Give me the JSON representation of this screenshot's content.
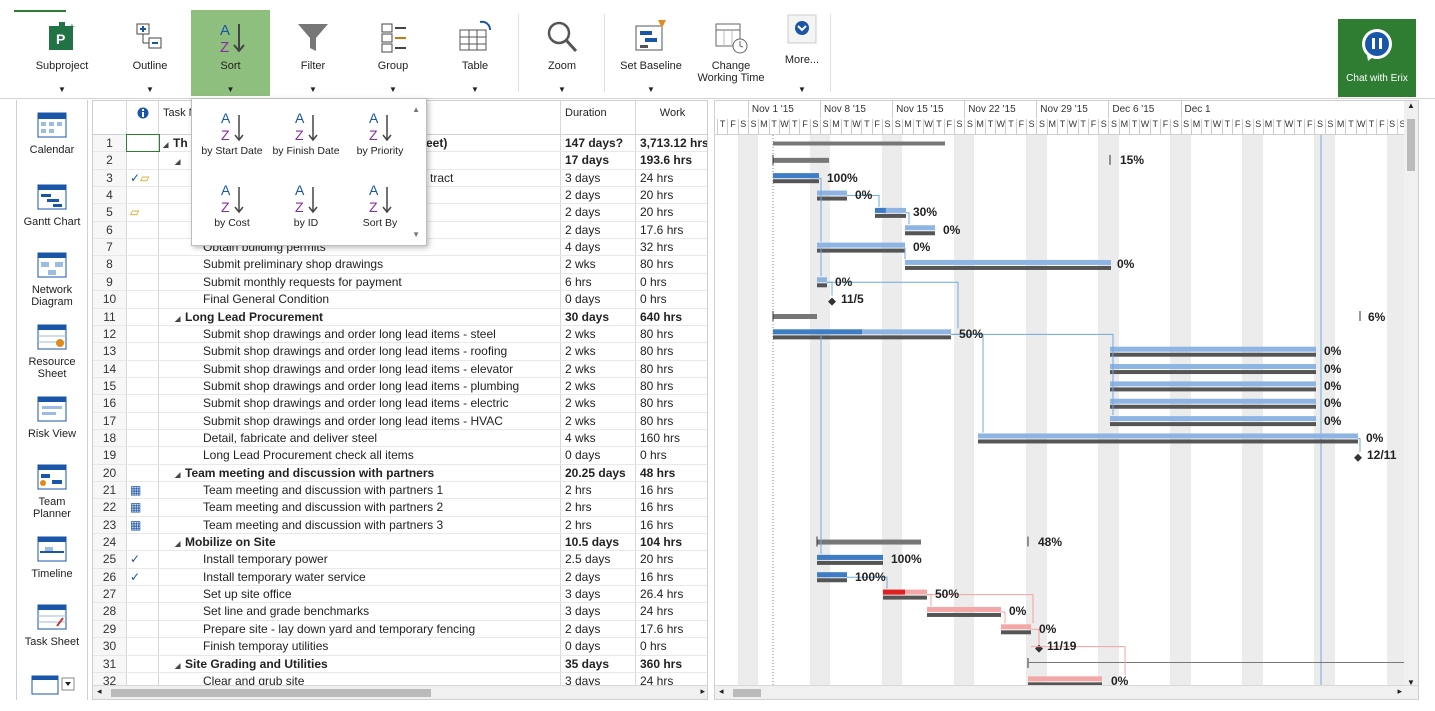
{
  "ribbon": {
    "subproject": "Subproject",
    "outline": "Outline",
    "sort": "Sort",
    "filter": "Filter",
    "group": "Group",
    "table": "Table",
    "zoom": "Zoom",
    "set_baseline": "Set Baseline",
    "change_working_time_1": "Change",
    "change_working_time_2": "Working Time",
    "more": "More...",
    "chat": "Chat with Erix"
  },
  "views": {
    "calendar": "Calendar",
    "gantt_chart": "Gantt Chart",
    "network_1": "Network",
    "network_2": "Diagram",
    "resource_1": "Resource",
    "resource_2": "Sheet",
    "risk_view": "Risk View",
    "team_1": "Team",
    "team_2": "Planner",
    "timeline": "Timeline",
    "task_sheet": "Task Sheet"
  },
  "sort_menu": {
    "by_start": "by Start Date",
    "by_finish": "by Finish Date",
    "by_priority": "by Priority",
    "by_cost": "by Cost",
    "by_id": "by ID",
    "sort_by": "Sort By"
  },
  "columns": {
    "task_name": "Task N",
    "duration": "Duration",
    "work": "Work"
  },
  "rows": [
    {
      "id": "1",
      "name": "Th",
      "name_tail": "eet)",
      "duration": "147 days?",
      "work": "3,713.12 hrs",
      "summary": true,
      "indent": 0
    },
    {
      "id": "2",
      "name": "",
      "duration": "17 days",
      "work": "193.6 hrs",
      "summary": true,
      "indent": 1
    },
    {
      "id": "3",
      "name": "",
      "name_tail": "tract",
      "duration": "3 days",
      "work": "24 hrs",
      "indent": 2
    },
    {
      "id": "4",
      "name": "",
      "duration": "2 days",
      "work": "20 hrs",
      "indent": 2
    },
    {
      "id": "5",
      "name": "",
      "duration": "2 days",
      "work": "20 hrs",
      "indent": 2
    },
    {
      "id": "6",
      "name": "",
      "duration": "2 days",
      "work": "17.6 hrs",
      "indent": 2
    },
    {
      "id": "7",
      "name": "Obtain building permits",
      "duration": "4 days",
      "work": "32 hrs",
      "indent": 2
    },
    {
      "id": "8",
      "name": "Submit preliminary shop drawings",
      "duration": "2 wks",
      "work": "80 hrs",
      "indent": 2
    },
    {
      "id": "9",
      "name": "Submit monthly requests for payment",
      "duration": "6 hrs",
      "work": "0 hrs",
      "indent": 2
    },
    {
      "id": "10",
      "name": "Final General Condition",
      "duration": "0 days",
      "work": "0 hrs",
      "indent": 2
    },
    {
      "id": "11",
      "name": "Long Lead Procurement",
      "duration": "30 days",
      "work": "640 hrs",
      "summary": true,
      "indent": 1
    },
    {
      "id": "12",
      "name": "Submit shop drawings and order long lead items - steel",
      "duration": "2 wks",
      "work": "80 hrs",
      "indent": 2
    },
    {
      "id": "13",
      "name": "Submit shop drawings and order long lead items - roofing",
      "duration": "2 wks",
      "work": "80 hrs",
      "indent": 2
    },
    {
      "id": "14",
      "name": "Submit shop drawings and order long lead items - elevator",
      "duration": "2 wks",
      "work": "80 hrs",
      "indent": 2
    },
    {
      "id": "15",
      "name": "Submit shop drawings and order long lead items - plumbing",
      "duration": "2 wks",
      "work": "80 hrs",
      "indent": 2
    },
    {
      "id": "16",
      "name": "Submit shop drawings and order long lead items - electric",
      "duration": "2 wks",
      "work": "80 hrs",
      "indent": 2
    },
    {
      "id": "17",
      "name": "Submit shop drawings and order long lead items - HVAC",
      "duration": "2 wks",
      "work": "80 hrs",
      "indent": 2
    },
    {
      "id": "18",
      "name": "Detail, fabricate and deliver steel",
      "duration": "4 wks",
      "work": "160 hrs",
      "indent": 2
    },
    {
      "id": "19",
      "name": "Long Lead Procurement check all items",
      "duration": "0 days",
      "work": "0 hrs",
      "indent": 2
    },
    {
      "id": "20",
      "name": "Team meeting and discussion with partners",
      "duration": "20.25 days",
      "work": "48 hrs",
      "summary": true,
      "indent": 1
    },
    {
      "id": "21",
      "name": "Team meeting and discussion with partners 1",
      "duration": "2 hrs",
      "work": "16 hrs",
      "indent": 2,
      "ind": "cal"
    },
    {
      "id": "22",
      "name": "Team meeting and discussion with partners 2",
      "duration": "2 hrs",
      "work": "16 hrs",
      "indent": 2,
      "ind": "cal"
    },
    {
      "id": "23",
      "name": "Team meeting and discussion with partners 3",
      "duration": "2 hrs",
      "work": "16 hrs",
      "indent": 2,
      "ind": "cal"
    },
    {
      "id": "24",
      "name": "Mobilize on Site",
      "duration": "10.5 days",
      "work": "104 hrs",
      "summary": true,
      "indent": 1
    },
    {
      "id": "25",
      "name": "Install temporary power",
      "duration": "2.5 days",
      "work": "20 hrs",
      "indent": 2,
      "ind": "check"
    },
    {
      "id": "26",
      "name": "Install temporary water service",
      "duration": "2 days",
      "work": "16 hrs",
      "indent": 2,
      "ind": "check"
    },
    {
      "id": "27",
      "name": "Set up site office",
      "duration": "3 days",
      "work": "26.4 hrs",
      "indent": 2
    },
    {
      "id": "28",
      "name": "Set line and grade benchmarks",
      "duration": "3 days",
      "work": "24 hrs",
      "indent": 2
    },
    {
      "id": "29",
      "name": "Prepare site - lay down yard and temporary fencing",
      "duration": "2 days",
      "work": "17.6 hrs",
      "indent": 2
    },
    {
      "id": "30",
      "name": "Finish temporay utilities",
      "duration": "0 days",
      "work": "0 hrs",
      "indent": 2
    },
    {
      "id": "31",
      "name": "Site Grading and Utilities",
      "duration": "35 days",
      "work": "360 hrs",
      "summary": true,
      "indent": 1
    },
    {
      "id": "32",
      "name": "Clear and grub site",
      "duration": "3 days",
      "work": "24 hrs",
      "indent": 2
    }
  ],
  "timescale": {
    "weeks": [
      "Nov 1 '15",
      "Nov 8 '15",
      "Nov 15 '15",
      "Nov 22 '15",
      "Nov 29 '15",
      "Dec 6 '15",
      "Dec 1"
    ],
    "days": [
      "T",
      "F",
      "S",
      "S",
      "M",
      "T",
      "W",
      "T",
      "F",
      "S",
      "S",
      "M",
      "T",
      "W",
      "T",
      "F",
      "S",
      "S",
      "M",
      "T",
      "W",
      "T",
      "F",
      "S",
      "S",
      "M",
      "T",
      "W",
      "T",
      "F",
      "S",
      "S",
      "M",
      "T",
      "W",
      "T",
      "F",
      "S",
      "S",
      "M",
      "T",
      "W",
      "T",
      "F",
      "S",
      "S",
      "M",
      "T",
      "W",
      "T",
      "F",
      "S",
      "S",
      "M",
      "T",
      "W",
      "T",
      "F",
      "S",
      "S",
      "M",
      "T",
      "W",
      "T",
      "F",
      "S",
      "S",
      "M"
    ]
  },
  "gantt_labels": {
    "r2": "15%",
    "r3": "100%",
    "r4": "0%",
    "r5": "30%",
    "r6": "0%",
    "r7": "0%",
    "r8": "0%",
    "r9": "0%",
    "r10": "11/5",
    "r11": "6%",
    "r12": "50%",
    "r13": "0%",
    "r14": "0%",
    "r15": "0%",
    "r16": "0%",
    "r17": "0%",
    "r18": "0%",
    "r19": "12/11",
    "r24": "48%",
    "r25": "100%",
    "r26": "100%",
    "r27": "50%",
    "r28": "0%",
    "r29": "0%",
    "r30": "11/19",
    "r32": "0%"
  },
  "colors": {
    "ribbon_active": "#8fbf7f",
    "chat_bg": "#2e7d32",
    "bar_blue": "#8db4e2",
    "bar_blue_done": "#3e7cc4",
    "bar_gray": "#555555",
    "bar_red": "#e02020",
    "bar_pink": "#f4a7a7",
    "link_blue": "#6fa8dc",
    "link_red": "#f4a0a0"
  }
}
